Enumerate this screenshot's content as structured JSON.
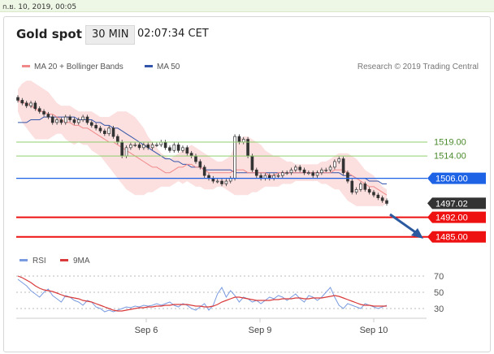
{
  "topbar": {
    "datetime": "ก.ย. 10, 2019, 00:05"
  },
  "header": {
    "title": "Gold spot",
    "timeframe": "30 MIN",
    "time": "02:07:34 CET"
  },
  "legend": {
    "ma20_label": "MA 20 + Bollinger Bands",
    "ma50_label": "MA 50",
    "credit": "Research © 2019 Trading Central",
    "colors": {
      "ma20": "#f08a8a",
      "bands": "#fcd9d9",
      "ma50": "#3355aa"
    }
  },
  "chart_data": [
    {
      "type": "line",
      "title": "Gold spot",
      "ylim": [
        1482,
        1542
      ],
      "x_ticks": [
        "Sep 6",
        "Sep 9",
        "Sep 10"
      ],
      "levels": [
        {
          "value": 1519.0,
          "label": "1519.00",
          "kind": "resistance",
          "color": "#8fcf6e"
        },
        {
          "value": 1514.0,
          "label": "1514.00",
          "kind": "resistance",
          "color": "#8fcf6e"
        },
        {
          "value": 1506.0,
          "label": "1506.00",
          "kind": "pivot",
          "color": "#1e63e6"
        },
        {
          "value": 1497.02,
          "label": "1497.02",
          "kind": "last",
          "color": "#333333"
        },
        {
          "value": 1492.0,
          "label": "1492.00",
          "kind": "support",
          "color": "#ee1111"
        },
        {
          "value": 1485.0,
          "label": "1485.00",
          "kind": "support",
          "color": "#ee1111"
        }
      ],
      "series": [
        {
          "name": "Gold spot",
          "values": [
            1534,
            1533,
            1532,
            1533,
            1531,
            1530,
            1529,
            1528,
            1526,
            1527,
            1526,
            1528,
            1527,
            1526,
            1527,
            1528,
            1526,
            1525,
            1524,
            1523,
            1522,
            1524,
            1521,
            1519,
            1514,
            1517,
            1518,
            1518,
            1517,
            1518,
            1517,
            1518,
            1518,
            1519,
            1517,
            1516,
            1518,
            1516,
            1517,
            1515,
            1514,
            1512,
            1510,
            1507,
            1506,
            1505,
            1505,
            1504,
            1505,
            1506,
            1521,
            1519,
            1520,
            1514,
            1509,
            1507,
            1506,
            1507,
            1506,
            1507,
            1507,
            1508,
            1508,
            1509,
            1510,
            1509,
            1508,
            1508,
            1507,
            1508,
            1509,
            1509,
            1510,
            1512,
            1513,
            1508,
            1505,
            1501,
            1502,
            1504,
            1502,
            1501,
            1500,
            1499,
            1498,
            1497
          ]
        },
        {
          "name": "MA 20",
          "values": [
            1534,
            1533,
            1533,
            1532,
            1531,
            1530,
            1530,
            1529,
            1529,
            1528,
            1527,
            1526,
            1526,
            1525,
            1525,
            1524,
            1524,
            1523,
            1522,
            1521,
            1520,
            1519,
            1519,
            1518,
            1517,
            1516,
            1515,
            1514,
            1513,
            1512,
            1511,
            1510,
            1510,
            1509,
            1508,
            1508,
            1509,
            1510,
            1510,
            1511,
            1511,
            1510,
            1510,
            1509,
            1508,
            1508,
            1508,
            1508,
            1508,
            1508,
            1509,
            1509,
            1509,
            1508,
            1508,
            1508,
            1508,
            1508,
            1507,
            1507,
            1508,
            1508,
            1508,
            1508,
            1508,
            1508,
            1508,
            1508,
            1508,
            1508,
            1508,
            1508,
            1508,
            1509,
            1509,
            1509,
            1508,
            1507,
            1506,
            1505,
            1504,
            1503,
            1503,
            1502,
            1501,
            1500
          ]
        },
        {
          "name": "MA 50",
          "values": [
            1526,
            1526,
            1526,
            1527,
            1527,
            1527,
            1528,
            1528,
            1528,
            1528,
            1528,
            1528,
            1528,
            1528,
            1527,
            1527,
            1527,
            1527,
            1526,
            1526,
            1525,
            1525,
            1524,
            1524,
            1523,
            1522,
            1521,
            1520,
            1519,
            1518,
            1517,
            1516,
            1515,
            1514,
            1513,
            1513,
            1512,
            1512,
            1511,
            1511,
            1510,
            1510,
            1510,
            1509,
            1509,
            1509,
            1509,
            1509,
            1509,
            1509,
            1508,
            1508,
            1508,
            1508,
            1508,
            1508,
            1508,
            1508,
            1508,
            1508,
            1508,
            1508,
            1508,
            1508,
            1508,
            1508,
            1508,
            1508,
            1508,
            1508,
            1508,
            1508,
            1508,
            1508,
            1508,
            1507,
            1507,
            1507,
            1506,
            1506,
            1506,
            1505,
            1505,
            1505,
            1504,
            1504
          ]
        },
        {
          "name": "Bollinger upper",
          "values": [
            1538,
            1540,
            1541,
            1541,
            1540,
            1539,
            1538,
            1537,
            1535,
            1533,
            1532,
            1532,
            1532,
            1531,
            1530,
            1530,
            1530,
            1530,
            1529,
            1528,
            1528,
            1528,
            1529,
            1530,
            1530,
            1530,
            1529,
            1528,
            1526,
            1524,
            1521,
            1519,
            1517,
            1515,
            1514,
            1513,
            1514,
            1515,
            1516,
            1517,
            1518,
            1517,
            1516,
            1515,
            1514,
            1513,
            1512,
            1512,
            1513,
            1514,
            1518,
            1520,
            1521,
            1521,
            1520,
            1519,
            1518,
            1516,
            1515,
            1514,
            1514,
            1513,
            1512,
            1512,
            1511,
            1511,
            1511,
            1511,
            1511,
            1511,
            1512,
            1512,
            1513,
            1514,
            1515,
            1515,
            1515,
            1514,
            1513,
            1511,
            1509,
            1508,
            1507,
            1505,
            1503,
            1502
          ]
        },
        {
          "name": "Bollinger lower",
          "values": [
            1530,
            1526,
            1524,
            1522,
            1520,
            1520,
            1520,
            1520,
            1521,
            1522,
            1522,
            1520,
            1519,
            1518,
            1519,
            1518,
            1518,
            1516,
            1515,
            1514,
            1512,
            1510,
            1508,
            1506,
            1504,
            1502,
            1501,
            1500,
            1500,
            1500,
            1501,
            1501,
            1502,
            1503,
            1503,
            1503,
            1504,
            1505,
            1504,
            1505,
            1504,
            1503,
            1503,
            1502,
            1502,
            1502,
            1503,
            1503,
            1502,
            1501,
            1500,
            1500,
            1500,
            1500,
            1501,
            1501,
            1502,
            1503,
            1503,
            1503,
            1503,
            1504,
            1504,
            1504,
            1505,
            1505,
            1505,
            1505,
            1505,
            1505,
            1504,
            1504,
            1503,
            1502,
            1502,
            1500,
            1498,
            1497,
            1496,
            1496,
            1496,
            1496,
            1496,
            1496,
            1496,
            1497
          ]
        }
      ]
    },
    {
      "type": "line",
      "title": "RSI",
      "ylim": [
        20,
        80
      ],
      "y_ticks": [
        70,
        50,
        30
      ],
      "series": [
        {
          "name": "RSI",
          "values": [
            66,
            62,
            58,
            52,
            48,
            44,
            50,
            54,
            46,
            42,
            38,
            46,
            44,
            40,
            38,
            34,
            40,
            38,
            32,
            30,
            26,
            28,
            26,
            28,
            30,
            32,
            31,
            33,
            32,
            34,
            33,
            34,
            36,
            34,
            36,
            38,
            34,
            32,
            36,
            34,
            30,
            28,
            32,
            36,
            28,
            34,
            48,
            56,
            44,
            52,
            46,
            38,
            44,
            42,
            38,
            40,
            36,
            40,
            44,
            42,
            46,
            44,
            40,
            44,
            48,
            42,
            38,
            46,
            44,
            40,
            44,
            50,
            56,
            44,
            34,
            30,
            36,
            34,
            32,
            30,
            36,
            34,
            32,
            30,
            32,
            34
          ]
        },
        {
          "name": "9MA",
          "values": [
            70,
            68,
            65,
            62,
            58,
            55,
            53,
            52,
            51,
            49,
            47,
            45,
            44,
            43,
            42,
            40,
            39,
            38,
            36,
            34,
            32,
            30,
            28,
            27,
            27,
            28,
            29,
            30,
            31,
            31,
            32,
            32,
            33,
            33,
            34,
            34,
            35,
            35,
            35,
            35,
            34,
            33,
            33,
            32,
            32,
            33,
            35,
            38,
            40,
            42,
            44,
            44,
            43,
            42,
            41,
            40,
            40,
            40,
            40,
            41,
            41,
            42,
            42,
            42,
            43,
            43,
            42,
            42,
            43,
            43,
            43,
            44,
            45,
            46,
            45,
            43,
            41,
            39,
            37,
            35,
            34,
            34,
            33,
            33,
            33,
            33
          ]
        }
      ],
      "colors": {
        "rsi": "#7a9be0",
        "ma9": "#d93a3a"
      }
    }
  ]
}
